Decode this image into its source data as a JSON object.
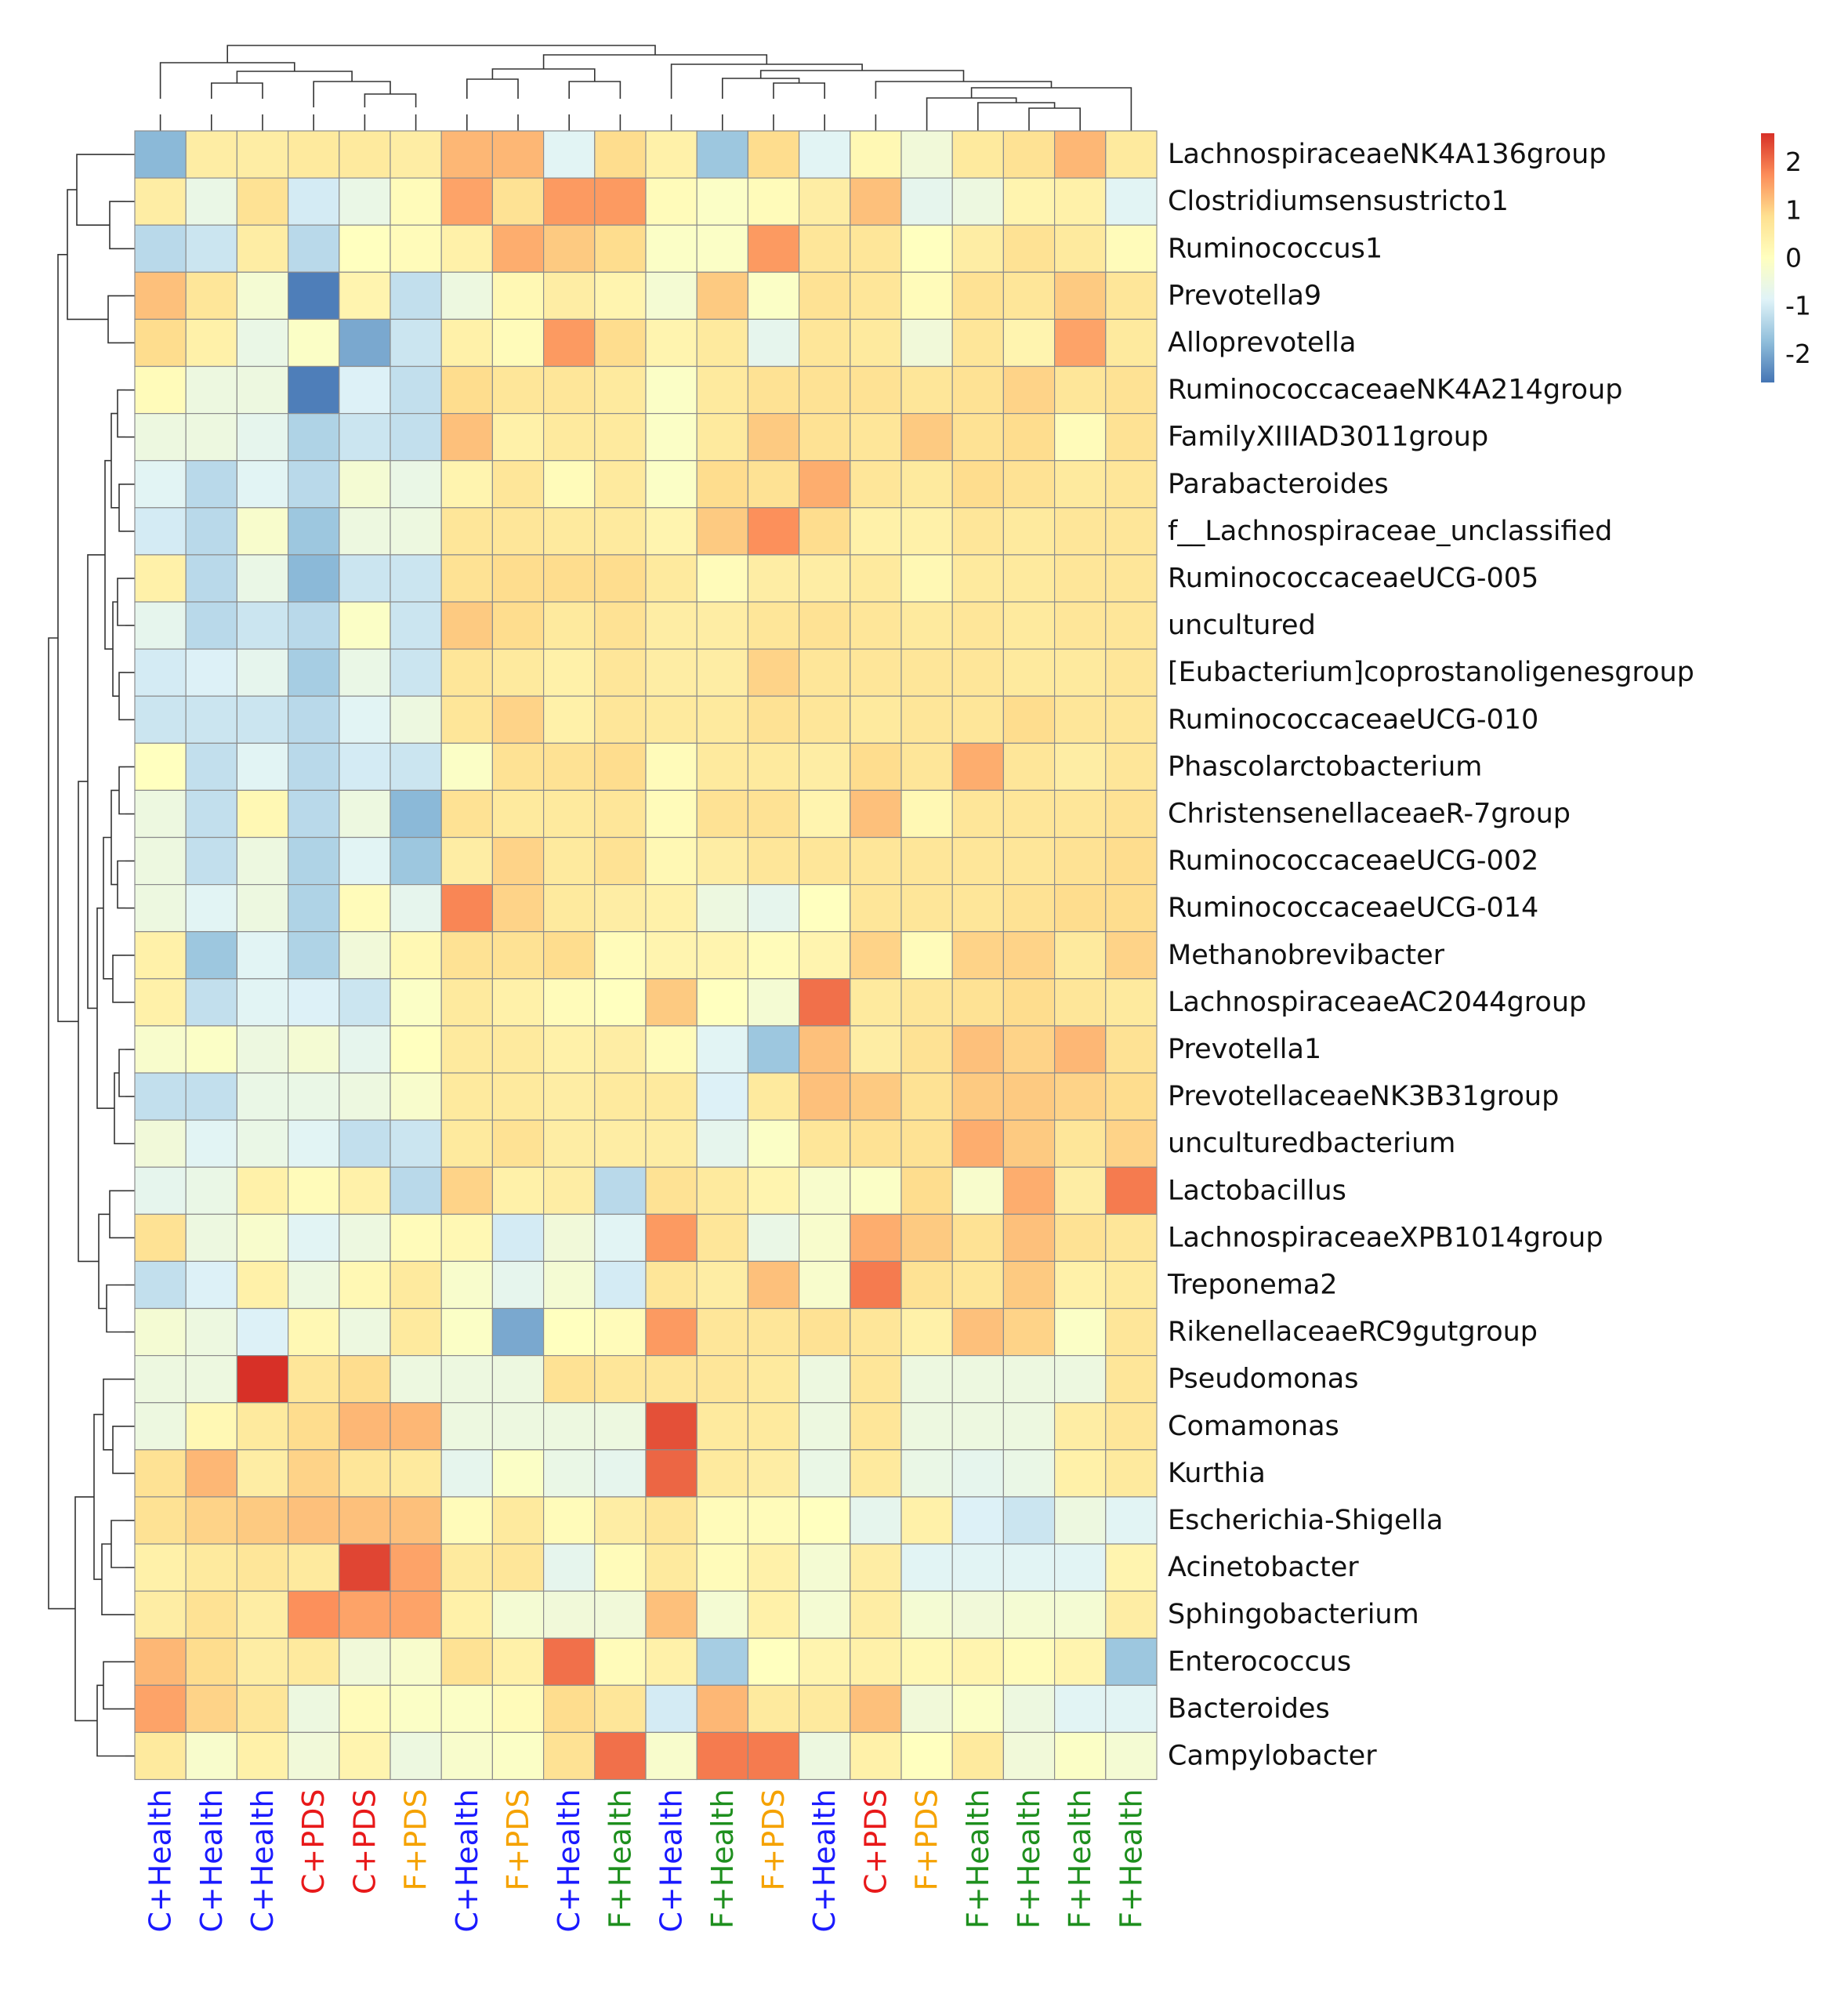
{
  "chart_data": {
    "type": "heatmap",
    "title": "",
    "columns": [
      "C+Health",
      "C+Health",
      "C+Health",
      "C+PDS",
      "C+PDS",
      "F+PDS",
      "C+Health",
      "F+PDS",
      "C+Health",
      "F+Health",
      "C+Health",
      "F+Health",
      "F+PDS",
      "C+Health",
      "C+PDS",
      "F+PDS",
      "F+Health",
      "F+Health",
      "F+Health",
      "F+Health"
    ],
    "rows": [
      "LachnospiraceaeNK4A136group",
      "Clostridiumsensustricto1",
      "Ruminococcus1",
      "Prevotella9",
      "Alloprevotella",
      "RuminococcaceaeNK4A214group",
      "FamilyXIIIAD3011group",
      "Parabacteroides",
      "f__Lachnospiraceae_unclassified",
      "RuminococcaceaeUCG-005",
      "uncultured",
      "[Eubacterium]coprostanoligenesgroup",
      "RuminococcaceaeUCG-010",
      "Phascolarctobacterium",
      "ChristensenellaceaeR-7group",
      "RuminococcaceaeUCG-002",
      "RuminococcaceaeUCG-014",
      "Methanobrevibacter",
      "LachnospiraceaeAC2044group",
      "Prevotella1",
      "PrevotellaceaeNK3B31group",
      "unculturedbacterium",
      "Lactobacillus",
      "LachnospiraceaeXPB1014group",
      "Treponema2",
      "RikenellaceaeRC9gutgroup",
      "Pseudomonas",
      "Comamonas",
      "Kurthia",
      "Escherichia-Shigella",
      "Acinetobacter",
      "Sphingobacterium",
      "Enterococcus",
      "Bacteroides",
      "Campylobacter"
    ],
    "values": [
      [
        -1.8,
        0.5,
        0.5,
        0.6,
        0.6,
        0.5,
        1.3,
        1.3,
        -0.8,
        0.9,
        0.4,
        -1.6,
        0.9,
        -0.8,
        0.2,
        -0.4,
        0.6,
        0.8,
        1.3,
        0.6
      ],
      [
        0.5,
        -0.6,
        0.8,
        -1.0,
        -0.6,
        0.1,
        1.5,
        0.8,
        1.6,
        1.6,
        0.1,
        -0.1,
        0.1,
        0.5,
        1.2,
        -0.7,
        -0.5,
        0.3,
        0.4,
        -0.8
      ],
      [
        -1.3,
        -1.1,
        0.5,
        -1.3,
        0.0,
        0.1,
        0.4,
        1.4,
        1.1,
        0.9,
        -0.1,
        -0.1,
        1.6,
        0.7,
        0.7,
        0.0,
        0.5,
        0.8,
        0.6,
        0.1
      ],
      [
        1.2,
        0.7,
        -0.3,
        -2.5,
        0.3,
        -1.2,
        -0.5,
        0.2,
        0.5,
        0.3,
        -0.3,
        1.1,
        -0.1,
        0.8,
        0.7,
        0.1,
        0.8,
        0.7,
        1.1,
        0.7
      ],
      [
        0.9,
        0.4,
        -0.6,
        -0.1,
        -2.0,
        -1.1,
        0.4,
        0.1,
        1.6,
        0.9,
        0.3,
        0.6,
        -0.7,
        0.7,
        0.6,
        -0.4,
        0.7,
        0.3,
        1.5,
        0.6
      ],
      [
        0.1,
        -0.5,
        -0.5,
        -2.5,
        -0.9,
        -1.2,
        0.9,
        0.7,
        0.7,
        0.6,
        -0.1,
        0.6,
        0.8,
        0.8,
        0.8,
        0.7,
        0.8,
        1.0,
        0.7,
        0.8
      ],
      [
        -0.5,
        -0.5,
        -0.7,
        -1.4,
        -1.1,
        -1.2,
        1.2,
        0.4,
        0.6,
        0.6,
        -0.1,
        0.6,
        1.1,
        0.8,
        0.7,
        1.1,
        0.8,
        0.9,
        0.1,
        0.8
      ],
      [
        -0.8,
        -1.3,
        -0.8,
        -1.3,
        -0.3,
        -0.6,
        0.3,
        0.7,
        0.1,
        0.6,
        -0.1,
        0.9,
        0.8,
        1.4,
        0.7,
        0.6,
        0.9,
        0.8,
        0.6,
        0.7
      ],
      [
        -1.0,
        -1.3,
        -0.2,
        -1.6,
        -0.5,
        -0.5,
        0.7,
        0.7,
        0.6,
        0.6,
        0.3,
        1.1,
        1.7,
        0.9,
        0.4,
        0.4,
        0.7,
        0.6,
        0.7,
        0.7
      ],
      [
        0.4,
        -1.3,
        -0.6,
        -1.8,
        -1.1,
        -1.1,
        0.8,
        0.9,
        0.9,
        0.9,
        0.6,
        0.1,
        0.5,
        0.5,
        0.6,
        0.2,
        0.6,
        0.6,
        0.7,
        0.7
      ],
      [
        -0.7,
        -1.3,
        -1.1,
        -1.3,
        -0.1,
        -1.1,
        1.1,
        0.9,
        0.6,
        0.8,
        0.5,
        0.5,
        0.7,
        0.8,
        0.7,
        0.6,
        0.7,
        0.6,
        0.7,
        0.7
      ],
      [
        -1.0,
        -0.9,
        -0.7,
        -1.5,
        -0.6,
        -1.1,
        0.7,
        0.6,
        0.4,
        0.7,
        0.5,
        0.5,
        1.0,
        0.7,
        0.7,
        0.7,
        0.7,
        0.6,
        0.6,
        0.7
      ],
      [
        -1.1,
        -1.1,
        -1.1,
        -1.3,
        -0.8,
        -0.5,
        0.7,
        1.0,
        0.4,
        0.7,
        0.6,
        0.6,
        0.8,
        0.7,
        0.6,
        0.7,
        0.7,
        0.9,
        0.7,
        0.7
      ],
      [
        0.0,
        -1.2,
        -0.8,
        -1.3,
        -1.0,
        -1.1,
        -0.1,
        0.8,
        0.8,
        0.9,
        0.1,
        0.6,
        0.6,
        0.5,
        0.9,
        0.7,
        1.4,
        0.7,
        0.5,
        0.7
      ],
      [
        -0.5,
        -1.2,
        0.2,
        -1.3,
        -0.5,
        -1.8,
        0.8,
        0.6,
        0.6,
        0.7,
        0.1,
        0.8,
        0.8,
        0.3,
        1.2,
        0.2,
        0.7,
        0.7,
        0.7,
        0.8
      ],
      [
        -0.5,
        -1.2,
        -0.5,
        -1.4,
        -0.8,
        -1.6,
        0.5,
        1.0,
        0.6,
        0.8,
        0.2,
        0.5,
        0.7,
        0.7,
        0.7,
        0.7,
        0.7,
        0.7,
        0.8,
        0.9
      ],
      [
        -0.5,
        -0.8,
        -0.5,
        -1.4,
        0.1,
        -0.7,
        1.8,
        1.0,
        0.6,
        0.5,
        0.4,
        -0.5,
        -0.7,
        0.0,
        0.7,
        0.7,
        0.7,
        0.8,
        0.9,
        0.9
      ],
      [
        0.4,
        -1.6,
        -0.8,
        -1.4,
        -0.4,
        0.2,
        0.8,
        0.8,
        0.9,
        0.1,
        0.3,
        0.3,
        0.1,
        0.3,
        1.0,
        0.1,
        1.0,
        1.0,
        0.6,
        1.0
      ],
      [
        0.4,
        -1.2,
        -0.8,
        -0.9,
        -1.1,
        -0.1,
        0.6,
        0.4,
        0.1,
        0.0,
        1.1,
        0.0,
        -0.3,
        2.0,
        0.6,
        0.7,
        0.8,
        0.9,
        0.7,
        0.6
      ],
      [
        -0.2,
        -0.1,
        -0.5,
        -0.3,
        -0.7,
        0.0,
        0.6,
        0.6,
        0.4,
        0.5,
        0.1,
        -0.8,
        -1.6,
        1.2,
        0.5,
        0.8,
        1.2,
        1.0,
        1.3,
        0.8
      ],
      [
        -1.2,
        -1.2,
        -0.6,
        -0.6,
        -0.5,
        -0.2,
        0.6,
        0.6,
        0.5,
        0.6,
        0.6,
        -0.9,
        0.6,
        1.2,
        1.1,
        0.8,
        1.1,
        1.1,
        1.0,
        0.9
      ],
      [
        -0.4,
        -0.8,
        -0.6,
        -0.8,
        -1.2,
        -1.1,
        0.6,
        0.8,
        0.5,
        0.5,
        0.5,
        -0.7,
        -0.1,
        0.7,
        0.8,
        0.8,
        1.4,
        1.1,
        0.7,
        1.0
      ],
      [
        -0.7,
        -0.6,
        0.4,
        0.1,
        0.4,
        -1.3,
        1.0,
        0.4,
        0.5,
        -1.3,
        0.8,
        0.6,
        0.3,
        -0.2,
        -0.1,
        0.9,
        -0.2,
        1.4,
        0.5,
        1.9
      ],
      [
        0.8,
        -0.5,
        -0.2,
        -0.8,
        -0.5,
        0.1,
        0.2,
        -1.0,
        -0.4,
        -0.8,
        1.6,
        0.7,
        -0.6,
        -0.2,
        1.4,
        1.1,
        0.8,
        1.2,
        0.8,
        0.7
      ],
      [
        -1.2,
        -0.9,
        0.4,
        -0.5,
        0.2,
        0.6,
        -0.2,
        -0.7,
        -0.3,
        -1.0,
        0.7,
        0.5,
        1.2,
        -0.2,
        1.9,
        0.8,
        0.7,
        1.1,
        0.4,
        0.6
      ],
      [
        -0.3,
        -0.5,
        -0.9,
        0.2,
        -0.5,
        0.6,
        -0.1,
        -2.0,
        0.0,
        0.1,
        1.6,
        0.7,
        0.7,
        0.8,
        0.7,
        0.4,
        1.2,
        1.0,
        -0.1,
        0.7
      ],
      [
        -0.5,
        -0.5,
        2.6,
        0.7,
        0.9,
        -0.5,
        -0.5,
        -0.5,
        0.8,
        0.7,
        0.7,
        0.7,
        0.6,
        -0.5,
        0.7,
        -0.5,
        -0.5,
        -0.5,
        -0.5,
        0.7
      ],
      [
        -0.5,
        0.2,
        0.6,
        0.9,
        1.3,
        1.3,
        -0.5,
        -0.5,
        -0.5,
        -0.5,
        2.3,
        0.6,
        0.6,
        -0.5,
        0.7,
        -0.5,
        -0.5,
        -0.5,
        0.5,
        0.7
      ],
      [
        0.8,
        1.3,
        0.5,
        1.0,
        0.7,
        0.6,
        -0.7,
        -0.1,
        -0.6,
        -0.7,
        2.1,
        0.6,
        0.5,
        -0.6,
        0.6,
        -0.6,
        -0.7,
        -0.6,
        0.4,
        0.6
      ],
      [
        0.8,
        1.0,
        1.1,
        1.2,
        1.2,
        1.2,
        0.1,
        0.6,
        0.1,
        0.5,
        0.7,
        0.1,
        0.1,
        0.0,
        -0.7,
        0.4,
        -0.9,
        -1.1,
        -0.5,
        -0.8
      ],
      [
        0.4,
        0.6,
        0.7,
        0.6,
        2.4,
        1.5,
        0.6,
        0.7,
        -0.7,
        0.1,
        0.6,
        0.1,
        0.4,
        -0.3,
        0.5,
        -0.8,
        -0.8,
        -0.8,
        -0.8,
        0.3
      ],
      [
        0.5,
        0.8,
        0.5,
        1.7,
        1.5,
        1.5,
        0.4,
        -0.3,
        -0.4,
        -0.4,
        1.2,
        -0.3,
        0.4,
        -0.3,
        0.5,
        -0.3,
        -0.4,
        -0.3,
        -0.3,
        0.5
      ],
      [
        1.3,
        0.9,
        0.5,
        0.6,
        -0.4,
        -0.2,
        0.8,
        0.4,
        2.0,
        0.1,
        0.4,
        -1.5,
        0.0,
        0.3,
        0.4,
        0.2,
        0.3,
        0.1,
        0.3,
        -1.6
      ],
      [
        1.5,
        1.0,
        0.7,
        -0.5,
        0.1,
        -0.1,
        -0.1,
        0.1,
        0.9,
        0.7,
        -1.0,
        1.3,
        0.6,
        0.6,
        1.2,
        -0.4,
        -0.1,
        -0.5,
        -0.8,
        -0.8
      ],
      [
        0.6,
        -0.2,
        0.4,
        -0.4,
        0.3,
        -0.5,
        -0.2,
        -0.1,
        0.8,
        2.0,
        -0.2,
        1.9,
        1.9,
        -0.5,
        0.4,
        0.0,
        0.6,
        -0.4,
        -0.1,
        -0.3
      ]
    ],
    "color_scale": {
      "min": -2.6,
      "max": 2.6,
      "ticks": [
        2,
        1,
        0,
        -1,
        -2
      ],
      "tick_labels": [
        "2",
        "1",
        "0",
        "-1",
        "-2"
      ],
      "stops": [
        "#4575b4",
        "#91bfdb",
        "#e0f3f8",
        "#ffffbf",
        "#fee090",
        "#fc8d59",
        "#d73027"
      ]
    },
    "group_colors": {
      "C+Health": "#1a1aff",
      "C+PDS": "#e8191a",
      "F+PDS": "#f5a200",
      "F+Health": "#1e8f1e"
    },
    "row_dendrogram": true,
    "column_dendrogram": true,
    "legend_position": "top-right"
  }
}
